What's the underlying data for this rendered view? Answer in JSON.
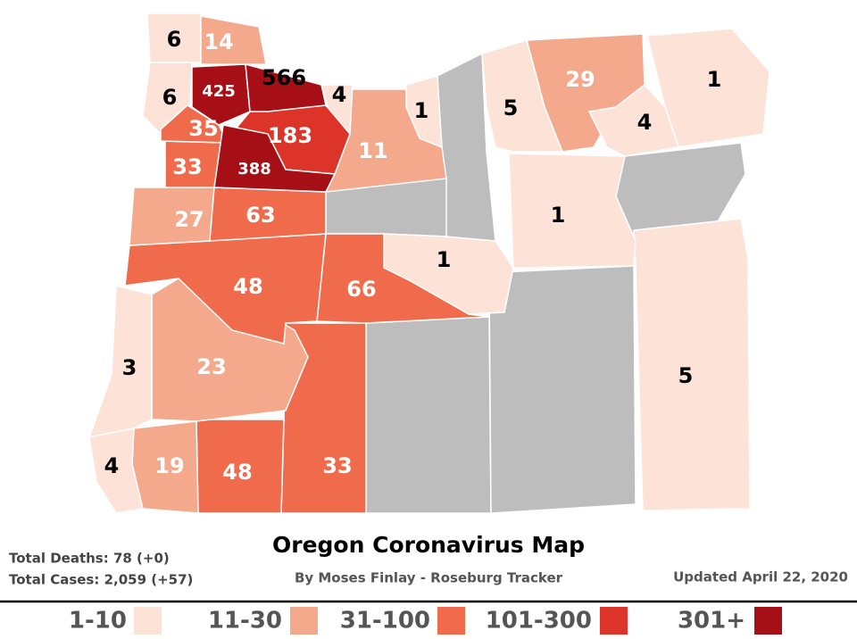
{
  "map": {
    "title": "Oregon Coronavirus Map",
    "byline": "By Moses Finlay - Roseburg Tracker",
    "updated": "Updated April 22, 2020",
    "stats": {
      "deaths": "Total Deaths: 78 (+0)",
      "cases": "Total Cases: 2,059 (+57)"
    },
    "legend": [
      {
        "label": "1-10",
        "color": "#fde2d8"
      },
      {
        "label": "11-30",
        "color": "#f4a88c"
      },
      {
        "label": "31-100",
        "color": "#f06a4c"
      },
      {
        "label": "101-300",
        "color": "#dc3428"
      },
      {
        "label": "301+",
        "color": "#a50f15"
      }
    ],
    "counties": [
      {
        "cases": 5,
        "color": "#fde2d8"
      },
      {
        "cases": 1,
        "color": "#fde2d8"
      },
      {
        "cases": 29,
        "color": "#f4a88c"
      },
      {
        "cases": 4,
        "color": "#fde2d8"
      },
      {
        "cases": 1,
        "color": "#fde2d8"
      },
      {
        "cases": 1,
        "color": "#fde2d8"
      },
      {
        "cases": 5,
        "color": "#fde2d8"
      },
      {
        "cases": 1,
        "color": "#fde2d8"
      },
      {
        "cases": 66,
        "color": "#f06a4c"
      },
      {
        "cases": 33,
        "color": "#f06a4c"
      },
      {
        "cases": 48,
        "color": "#f06a4c"
      },
      {
        "cases": 19,
        "color": "#f4a88c"
      },
      {
        "cases": 4,
        "color": "#fde2d8"
      },
      {
        "cases": 23,
        "color": "#f4a88c"
      },
      {
        "cases": 3,
        "color": "#fde2d8"
      },
      {
        "cases": 48,
        "color": "#f06a4c"
      },
      {
        "cases": 27,
        "color": "#f4a88c"
      },
      {
        "cases": 63,
        "color": "#f06a4c"
      },
      {
        "cases": 11,
        "color": "#f4a88c"
      },
      {
        "cases": 4,
        "color": "#fde2d8"
      },
      {
        "cases": 6,
        "color": "#fde2d8"
      },
      {
        "cases": 14,
        "color": "#f4a88c"
      },
      {
        "cases": 6,
        "color": "#fde2d8"
      },
      {
        "cases": 33,
        "color": "#f06a4c"
      },
      {
        "cases": 35,
        "color": "#f06a4c"
      },
      {
        "cases": 183,
        "color": "#dc3428"
      },
      {
        "cases": 388,
        "color": "#a50f15"
      },
      {
        "cases": 425,
        "color": "#a50f15"
      },
      {
        "cases": 566,
        "color": "#a50f15"
      }
    ]
  }
}
